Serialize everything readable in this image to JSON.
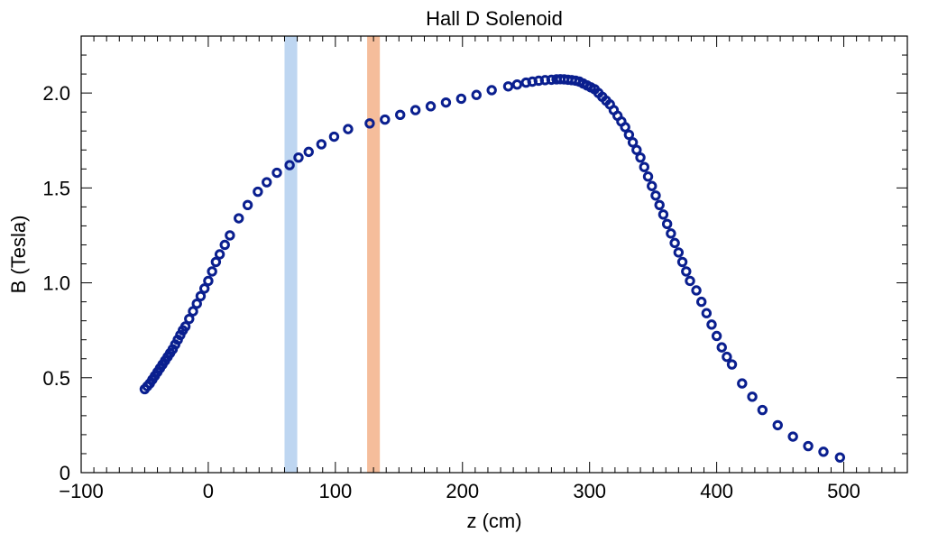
{
  "chart_data": {
    "type": "scatter",
    "title": "Hall D Solenoid",
    "xlabel": "z (cm)",
    "ylabel": "B (Tesla)",
    "xlim": [
      -100,
      550
    ],
    "ylim": [
      0,
      2.3
    ],
    "x_ticks": [
      -100,
      0,
      100,
      200,
      300,
      400,
      500
    ],
    "x_tick_labels": [
      "−100",
      "0",
      "100",
      "200",
      "300",
      "400",
      "500"
    ],
    "y_ticks": [
      0,
      0.5,
      1.0,
      1.5,
      2.0
    ],
    "y_tick_labels": [
      "0",
      "0.5",
      "1.0",
      "1.5",
      "2.0"
    ],
    "grid": false,
    "marker_color": "#0a1f8f",
    "bands": [
      {
        "name": "blue-band",
        "x_range": [
          60,
          70
        ],
        "color": "#a8c8ec"
      },
      {
        "name": "orange-band",
        "x_range": [
          125,
          135
        ],
        "color": "#f2a77a"
      }
    ],
    "series": [
      {
        "name": "B field",
        "points": [
          [
            -50,
            0.44
          ],
          [
            -48,
            0.455
          ],
          [
            -46,
            0.47
          ],
          [
            -44,
            0.49
          ],
          [
            -42,
            0.51
          ],
          [
            -40,
            0.53
          ],
          [
            -38,
            0.55
          ],
          [
            -36,
            0.57
          ],
          [
            -34,
            0.59
          ],
          [
            -32,
            0.61
          ],
          [
            -30,
            0.63
          ],
          [
            -28,
            0.65
          ],
          [
            -26,
            0.675
          ],
          [
            -24,
            0.7
          ],
          [
            -22,
            0.725
          ],
          [
            -20,
            0.75
          ],
          [
            -18,
            0.77
          ],
          [
            -15,
            0.81
          ],
          [
            -12,
            0.85
          ],
          [
            -9,
            0.89
          ],
          [
            -6,
            0.93
          ],
          [
            -3,
            0.97
          ],
          [
            0,
            1.01
          ],
          [
            3,
            1.06
          ],
          [
            6,
            1.11
          ],
          [
            9,
            1.15
          ],
          [
            13,
            1.2
          ],
          [
            17,
            1.25
          ],
          [
            24,
            1.34
          ],
          [
            31,
            1.41
          ],
          [
            39,
            1.48
          ],
          [
            46,
            1.53
          ],
          [
            54,
            1.58
          ],
          [
            64,
            1.62
          ],
          [
            71,
            1.66
          ],
          [
            79,
            1.69
          ],
          [
            89,
            1.73
          ],
          [
            99,
            1.77
          ],
          [
            110,
            1.81
          ],
          [
            127,
            1.84
          ],
          [
            139,
            1.86
          ],
          [
            151,
            1.885
          ],
          [
            163,
            1.91
          ],
          [
            175,
            1.93
          ],
          [
            187,
            1.95
          ],
          [
            199,
            1.97
          ],
          [
            211,
            1.99
          ],
          [
            223,
            2.015
          ],
          [
            236,
            2.035
          ],
          [
            243,
            2.045
          ],
          [
            250,
            2.055
          ],
          [
            255,
            2.06
          ],
          [
            260,
            2.065
          ],
          [
            265,
            2.068
          ],
          [
            270,
            2.07
          ],
          [
            274,
            2.072
          ],
          [
            277,
            2.073
          ],
          [
            280,
            2.072
          ],
          [
            283,
            2.07
          ],
          [
            286,
            2.068
          ],
          [
            289,
            2.065
          ],
          [
            292,
            2.06
          ],
          [
            295,
            2.05
          ],
          [
            298,
            2.04
          ],
          [
            301,
            2.03
          ],
          [
            304,
            2.02
          ],
          [
            307,
            2.0
          ],
          [
            310,
            1.98
          ],
          [
            313,
            1.96
          ],
          [
            316,
            1.94
          ],
          [
            319,
            1.91
          ],
          [
            322,
            1.88
          ],
          [
            325,
            1.85
          ],
          [
            328,
            1.82
          ],
          [
            331,
            1.78
          ],
          [
            334,
            1.74
          ],
          [
            337,
            1.7
          ],
          [
            340,
            1.66
          ],
          [
            343,
            1.61
          ],
          [
            346,
            1.56
          ],
          [
            349,
            1.51
          ],
          [
            352,
            1.46
          ],
          [
            355,
            1.41
          ],
          [
            358,
            1.36
          ],
          [
            361,
            1.31
          ],
          [
            364,
            1.26
          ],
          [
            367,
            1.21
          ],
          [
            370,
            1.16
          ],
          [
            373,
            1.11
          ],
          [
            376,
            1.06
          ],
          [
            379,
            1.01
          ],
          [
            384,
            0.96
          ],
          [
            388,
            0.9
          ],
          [
            392,
            0.84
          ],
          [
            396,
            0.78
          ],
          [
            400,
            0.72
          ],
          [
            404,
            0.66
          ],
          [
            408,
            0.61
          ],
          [
            412,
            0.57
          ],
          [
            420,
            0.47
          ],
          [
            428,
            0.4
          ],
          [
            436,
            0.33
          ],
          [
            448,
            0.25
          ],
          [
            460,
            0.19
          ],
          [
            472,
            0.14
          ],
          [
            484,
            0.11
          ],
          [
            497,
            0.08
          ]
        ]
      }
    ]
  }
}
